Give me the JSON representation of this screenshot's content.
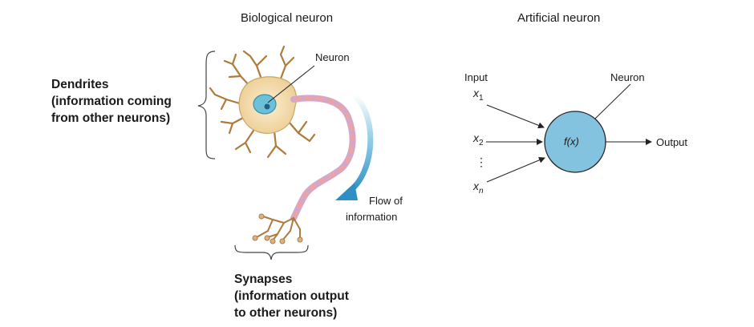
{
  "biological": {
    "title": "Biological neuron",
    "neuron_label": "Neuron",
    "dendrites_label": [
      "Dendrites",
      "(information coming",
      "from other neurons)"
    ],
    "flow_label": [
      "Flow of",
      "information"
    ],
    "synapses_label": [
      "Synapses",
      "(information output",
      "to other neurons)"
    ]
  },
  "artificial": {
    "title": "Artificial neuron",
    "input_label": "Input",
    "neuron_label": "Neuron",
    "function_label": "f(x)",
    "output_label": "Output",
    "inputs": [
      {
        "base": "x",
        "sub": "1"
      },
      {
        "base": "x",
        "sub": "2"
      },
      {
        "base": "x",
        "sub": "n"
      }
    ],
    "ellipsis": "⋮"
  },
  "colors": {
    "cell_body": "#f3dcae",
    "nucleus": "#6cc0d8",
    "axon": "#c9a9dc",
    "myelin": "#e8a4a8",
    "flow_arrow": "#3d9bcb",
    "artificial_neuron": "#84c3df"
  }
}
